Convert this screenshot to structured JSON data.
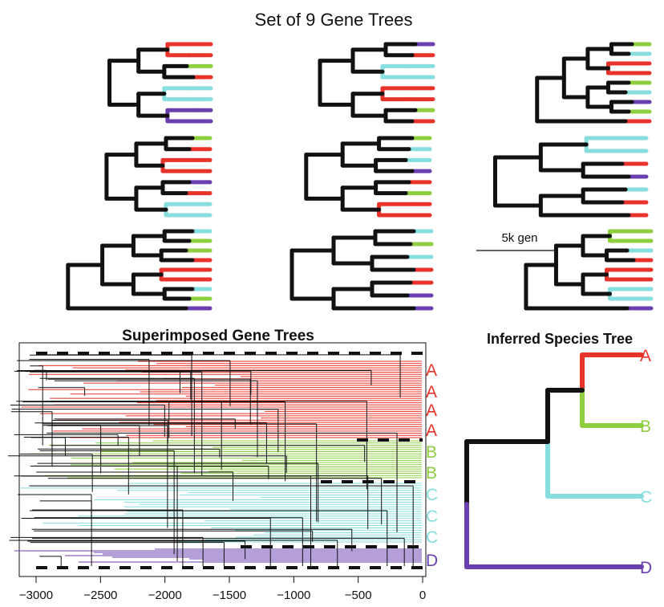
{
  "titles": {
    "main": "Set of 9 Gene Trees",
    "superimposed": "Superimposed Gene Trees",
    "species": "Inferred Species Tree"
  },
  "scale_label": "5k gen",
  "colors": {
    "A": "#e8332a",
    "B": "#8dcf3f",
    "C": "#87dede",
    "D": "#6a3fb0",
    "internal": "#111111"
  },
  "gene_trees": [
    {
      "panel": 1,
      "tips": [
        "A",
        "A",
        "B",
        "A",
        "C",
        "C",
        "D",
        "D"
      ]
    },
    {
      "panel": 2,
      "tips": [
        "D",
        "A",
        "C",
        "C",
        "A",
        "A",
        "B",
        "A"
      ]
    },
    {
      "panel": 3,
      "tips": [
        "B",
        "C",
        "A",
        "A",
        "B",
        "C",
        "D",
        "B",
        "A"
      ]
    },
    {
      "panel": 4,
      "tips": [
        "B",
        "A",
        "A",
        "A",
        "D",
        "A",
        "C",
        "C"
      ]
    },
    {
      "panel": 5,
      "tips": [
        "B",
        "C",
        "C",
        "D",
        "A",
        "B",
        "A",
        "A"
      ]
    },
    {
      "panel": 6,
      "tips": [
        "C",
        "C",
        "A",
        "D",
        "C",
        "A",
        "A"
      ]
    },
    {
      "panel": 7,
      "tips": [
        "C",
        "B",
        "B",
        "A",
        "A",
        "A",
        "C",
        "B",
        "D"
      ]
    },
    {
      "panel": 8,
      "tips": [
        "C",
        "B",
        "C",
        "A",
        "A",
        "D",
        "D"
      ]
    },
    {
      "panel": 9,
      "tips": [
        "B",
        "B",
        "C",
        "A",
        "A",
        "A",
        "C",
        "C",
        "D"
      ]
    }
  ],
  "chart_data": [
    {
      "type": "line",
      "title": "Superimposed Gene Trees",
      "xlabel": "",
      "ylabel": "",
      "x_ticks": [
        -3000,
        -2500,
        -2000,
        -1500,
        -1000,
        -500,
        0
      ],
      "xlim": [
        -3000,
        0
      ],
      "clade_labels": [
        "A",
        "A",
        "A",
        "A",
        "B",
        "B",
        "C",
        "C",
        "C",
        "D"
      ],
      "series": [
        {
          "name": "A",
          "color": "#e8332a"
        },
        {
          "name": "B",
          "color": "#8dcf3f"
        },
        {
          "name": "C",
          "color": "#87dede"
        },
        {
          "name": "D",
          "color": "#6a3fb0"
        }
      ]
    },
    {
      "type": "tree",
      "title": "Inferred Species Tree",
      "tips": [
        "A",
        "B",
        "C",
        "D"
      ],
      "topology": "(((A,B),C),D)"
    }
  ]
}
